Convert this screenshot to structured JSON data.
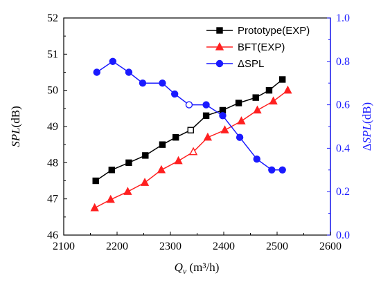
{
  "chart_data": {
    "type": "line",
    "x_axis": {
      "label_main": "Q",
      "label_sub": "v",
      "label_unit": " (m³/h)",
      "range": [
        2100,
        2600
      ],
      "ticks": [
        2100,
        2200,
        2300,
        2400,
        2500,
        2600
      ]
    },
    "y_left": {
      "label_italic": "SPL",
      "label_unit": "(dB)",
      "range": [
        46,
        52
      ],
      "ticks": [
        46,
        47,
        48,
        49,
        50,
        51,
        52
      ]
    },
    "y_right": {
      "label_prefix": "Δ",
      "label_italic": "SPL",
      "label_unit": "(dB)",
      "range": [
        0.0,
        1.0
      ],
      "ticks": [
        "0.0",
        "0.2",
        "0.4",
        "0.6",
        "0.8",
        "1.0"
      ],
      "color": "#1a1aff"
    },
    "series": [
      {
        "name": "Prototype(EXP)",
        "axis": "left",
        "color": "#000000",
        "marker": "square",
        "x": [
          2160,
          2190,
          2222,
          2253,
          2285,
          2310,
          2338,
          2367,
          2398,
          2428,
          2460,
          2485,
          2510
        ],
        "y": [
          47.5,
          47.8,
          48.0,
          48.2,
          48.5,
          48.7,
          48.9,
          49.3,
          49.45,
          49.65,
          49.8,
          50.0,
          50.3
        ],
        "hollow_index": 6
      },
      {
        "name": "BFT(EXP)",
        "axis": "left",
        "color": "#ff2020",
        "marker": "triangle",
        "x": [
          2158,
          2188,
          2220,
          2252,
          2283,
          2315,
          2343,
          2370,
          2402,
          2433,
          2463,
          2493,
          2520
        ],
        "y": [
          46.75,
          46.98,
          47.2,
          47.45,
          47.8,
          48.05,
          48.3,
          48.7,
          48.9,
          49.15,
          49.45,
          49.7,
          50.0
        ],
        "hollow_index": 6
      },
      {
        "name": "ΔSPL",
        "axis": "right",
        "color": "#1a1aff",
        "marker": "circle",
        "x": [
          2162,
          2192,
          2222,
          2248,
          2285,
          2308,
          2335,
          2367,
          2398,
          2430,
          2462,
          2490,
          2510
        ],
        "y": [
          0.75,
          0.8,
          0.75,
          0.7,
          0.7,
          0.65,
          0.6,
          0.6,
          0.55,
          0.45,
          0.35,
          0.3,
          0.3
        ],
        "hollow_index": 6
      }
    ],
    "legend": {
      "position": "top-right"
    }
  }
}
